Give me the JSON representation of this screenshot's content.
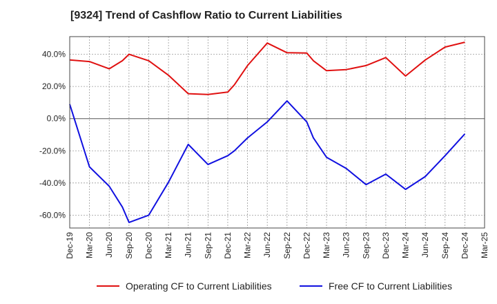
{
  "title": "[9324]  Trend of Cashflow Ratio to Current Liabilities",
  "chart_data": {
    "type": "line",
    "title": "[9324]  Trend of Cashflow Ratio to Current Liabilities",
    "xlabel": "",
    "ylabel": "",
    "x_ticks": [
      "Dec-19",
      "Mar-20",
      "Jun-20",
      "Sep-20",
      "Dec-20",
      "Mar-21",
      "Jun-21",
      "Sep-21",
      "Dec-21",
      "Mar-22",
      "Jun-22",
      "Sep-22",
      "Dec-22",
      "Mar-23",
      "Jun-23",
      "Sep-23",
      "Dec-23",
      "Mar-24",
      "Jun-24",
      "Sep-24",
      "Dec-24",
      "Mar-25"
    ],
    "y_ticks": [
      "40.0%",
      "20.0%",
      "0.0%",
      "-20.0%",
      "-40.0%",
      "-60.0%"
    ],
    "y_tick_values": [
      40,
      20,
      0,
      -20,
      -40,
      -60
    ],
    "ylim": [
      -68,
      51
    ],
    "grid": true,
    "legend_position": "bottom",
    "x_points": [
      "Dec-19",
      "Mar-20",
      "Jun-20",
      "Aug-20",
      "Sep-20",
      "Dec-20",
      "Mar-21",
      "Jun-21",
      "Sep-21",
      "Dec-21",
      "Jan-22",
      "Mar-22",
      "Jun-22",
      "Sep-22",
      "Dec-22",
      "Jan-23",
      "Mar-23",
      "Jun-23",
      "Sep-23",
      "Dec-23",
      "Mar-24",
      "Jun-24",
      "Sep-24",
      "Dec-24"
    ],
    "series": [
      {
        "name": "Operating CF to Current Liabilities",
        "color": "#e01010",
        "values": [
          36.5,
          35.5,
          31,
          36,
          40,
          36,
          27,
          15.5,
          15,
          16.5,
          21,
          33,
          47,
          41,
          40.8,
          36,
          29.8,
          30.5,
          33,
          38,
          26.5,
          36.5,
          44.5,
          47.5
        ]
      },
      {
        "name": "Free CF to Current Liabilities",
        "color": "#1010e0",
        "values": [
          9,
          -30,
          -42,
          -55,
          -64.5,
          -60,
          -39.5,
          -16,
          -28.5,
          -23,
          -20,
          -12,
          -2,
          11,
          -2,
          -12,
          -24,
          -31,
          -41,
          -34.5,
          -44,
          -36,
          -23,
          -9.5
        ]
      }
    ]
  }
}
